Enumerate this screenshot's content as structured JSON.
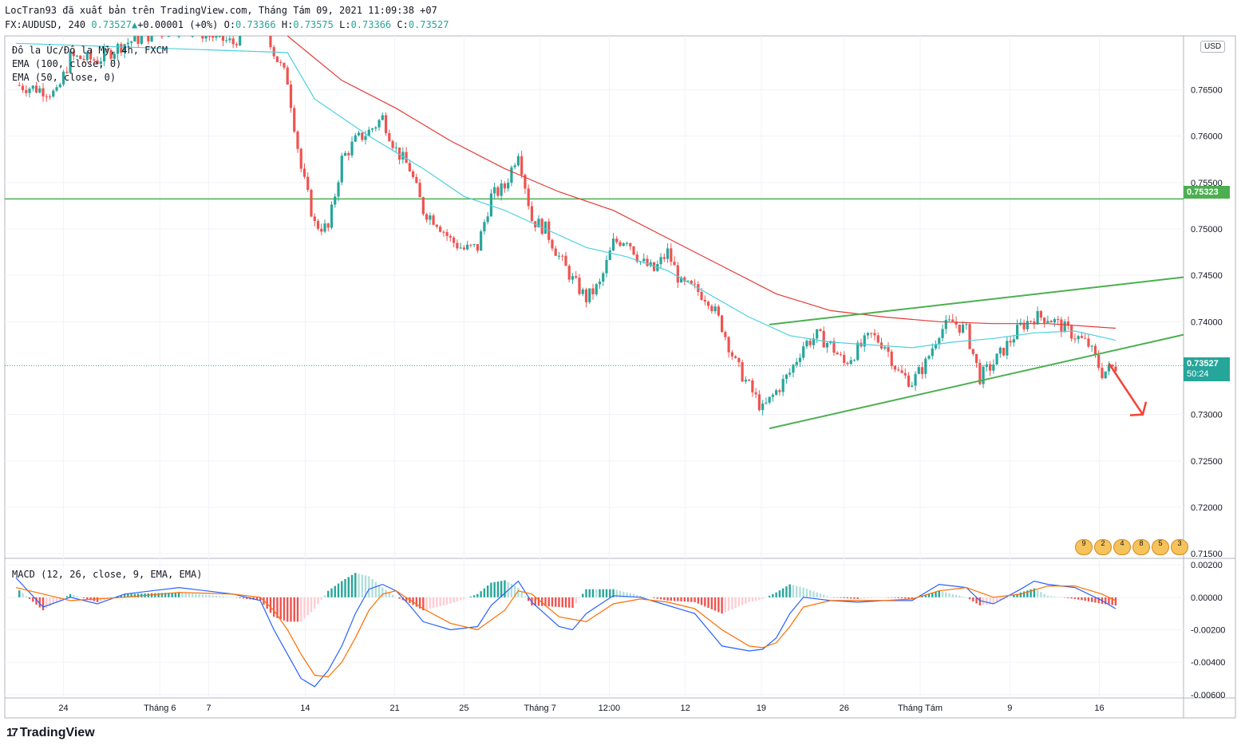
{
  "header": {
    "line1": "LocTran93 đã xuất bản trên TradingView.com, Tháng Tám 09, 2021 11:09:38 +07",
    "symbol": "FX:AUDUSD, 240",
    "last": "0.73527",
    "change": "+0.00001 (+0%)",
    "o_label": "O:",
    "o": "0.73366",
    "h_label": "H:",
    "h": "0.73575",
    "l_label": "L:",
    "l": "0.73366",
    "c_label": "C:",
    "c": "0.73527"
  },
  "legend": {
    "title": "Đô la Úc/Đô la Mỹ, 4h, FXCM",
    "ema100": "EMA (100, close, 0)",
    "ema50": "EMA (50, close, 0)",
    "macd": "MACD (12, 26, close, 9, EMA, EMA)"
  },
  "price_axis": {
    "currency": "USD",
    "ticks": [
      "0.76500",
      "0.76000",
      "0.75500",
      "0.75000",
      "0.74500",
      "0.74000",
      "0.73000",
      "0.72500",
      "0.72000",
      "0.71500"
    ],
    "hline_label": "0.75323",
    "current_label": "0.73527",
    "countdown": "50:24"
  },
  "macd_axis": {
    "ticks": [
      "0.00200",
      "0.00000",
      "-0.00200",
      "-0.00400",
      "-0.00600"
    ]
  },
  "time_axis": {
    "ticks": [
      "24",
      "Tháng 6",
      "7",
      "14",
      "21",
      "25",
      "Tháng 7",
      "12:00",
      "12",
      "19",
      "26",
      "Tháng Tám",
      "9",
      "16"
    ]
  },
  "events": [
    "9",
    "2",
    "4",
    "8",
    "5",
    "3"
  ],
  "brand": {
    "logo": "17",
    "name": "TradingView"
  },
  "colors": {
    "up": "#26a69a",
    "down": "#ef5350",
    "ema50": "#4dd0e1",
    "ema100": "#e53935",
    "trend": "#4caf50",
    "macd": "#2962ff",
    "signal": "#ff6d00",
    "arrow": "#f44336"
  },
  "chart_data": {
    "type": "candlestick",
    "symbol": "FX:AUDUSD",
    "timeframe": "4h",
    "ylim": [
      0.7145,
      0.7708
    ],
    "macd_ylim": [
      -0.0062,
      0.0024
    ],
    "horizontal_line": 0.75323,
    "current_price": 0.73527,
    "close_path": [
      [
        0,
        0.7655
      ],
      [
        2,
        0.765
      ],
      [
        3,
        0.7645
      ],
      [
        4,
        0.7685
      ],
      [
        6,
        0.7682
      ],
      [
        8,
        0.77
      ],
      [
        10,
        0.771
      ],
      [
        12,
        0.772
      ],
      [
        14,
        0.771
      ],
      [
        16,
        0.77
      ],
      [
        18,
        0.774
      ],
      [
        19,
        0.769
      ],
      [
        20,
        0.766
      ],
      [
        21,
        0.7565
      ],
      [
        22,
        0.7505
      ],
      [
        23,
        0.75
      ],
      [
        24,
        0.7575
      ],
      [
        25,
        0.7595
      ],
      [
        26,
        0.7605
      ],
      [
        27,
        0.762
      ],
      [
        28,
        0.7585
      ],
      [
        29,
        0.7565
      ],
      [
        30,
        0.752
      ],
      [
        31,
        0.7508
      ],
      [
        32,
        0.7488
      ],
      [
        33,
        0.7478
      ],
      [
        34,
        0.748
      ],
      [
        35,
        0.7535
      ],
      [
        36,
        0.7545
      ],
      [
        37,
        0.7585
      ],
      [
        38,
        0.751
      ],
      [
        39,
        0.75
      ],
      [
        40,
        0.747
      ],
      [
        41,
        0.7445
      ],
      [
        42,
        0.7425
      ],
      [
        43,
        0.744
      ],
      [
        44,
        0.7485
      ],
      [
        45,
        0.749
      ],
      [
        46,
        0.7465
      ],
      [
        47,
        0.7455
      ],
      [
        48,
        0.7475
      ],
      [
        49,
        0.744
      ],
      [
        50,
        0.7435
      ],
      [
        51,
        0.7425
      ],
      [
        52,
        0.7395
      ],
      [
        53,
        0.7355
      ],
      [
        54,
        0.733
      ],
      [
        55,
        0.7305
      ],
      [
        56,
        0.7325
      ],
      [
        57,
        0.7345
      ],
      [
        58,
        0.7375
      ],
      [
        59,
        0.7385
      ],
      [
        60,
        0.7375
      ],
      [
        61,
        0.7355
      ],
      [
        62,
        0.737
      ],
      [
        63,
        0.7385
      ],
      [
        64,
        0.7375
      ],
      [
        65,
        0.7345
      ],
      [
        66,
        0.7335
      ],
      [
        67,
        0.7355
      ],
      [
        68,
        0.739
      ],
      [
        69,
        0.74
      ],
      [
        70,
        0.739
      ],
      [
        71,
        0.734
      ],
      [
        72,
        0.7355
      ],
      [
        73,
        0.7375
      ],
      [
        74,
        0.7395
      ],
      [
        75,
        0.7405
      ],
      [
        76,
        0.7405
      ],
      [
        77,
        0.7395
      ],
      [
        78,
        0.7385
      ],
      [
        79,
        0.7375
      ],
      [
        80,
        0.7345
      ],
      [
        81,
        0.7352
      ]
    ],
    "ema50": [
      [
        0,
        0.77
      ],
      [
        20,
        0.769
      ],
      [
        22,
        0.764
      ],
      [
        26,
        0.76
      ],
      [
        30,
        0.7565
      ],
      [
        33,
        0.7535
      ],
      [
        36,
        0.752
      ],
      [
        39,
        0.75
      ],
      [
        42,
        0.748
      ],
      [
        45,
        0.747
      ],
      [
        48,
        0.7455
      ],
      [
        51,
        0.743
      ],
      [
        54,
        0.7405
      ],
      [
        57,
        0.7385
      ],
      [
        60,
        0.7378
      ],
      [
        63,
        0.7375
      ],
      [
        66,
        0.7372
      ],
      [
        69,
        0.7378
      ],
      [
        72,
        0.7382
      ],
      [
        75,
        0.7388
      ],
      [
        78,
        0.739
      ],
      [
        81,
        0.738
      ]
    ],
    "ema100": [
      [
        20,
        0.772
      ],
      [
        24,
        0.766
      ],
      [
        28,
        0.763
      ],
      [
        32,
        0.7595
      ],
      [
        36,
        0.7565
      ],
      [
        40,
        0.754
      ],
      [
        44,
        0.752
      ],
      [
        48,
        0.749
      ],
      [
        52,
        0.746
      ],
      [
        56,
        0.743
      ],
      [
        60,
        0.7412
      ],
      [
        64,
        0.7405
      ],
      [
        68,
        0.74
      ],
      [
        72,
        0.7398
      ],
      [
        76,
        0.7398
      ],
      [
        81,
        0.7393
      ]
    ],
    "trendlines": [
      {
        "name": "upper",
        "from": [
          55.5,
          0.7397
        ],
        "to": [
          86,
          0.7448
        ]
      },
      {
        "name": "lower",
        "from": [
          55.5,
          0.7285
        ],
        "to": [
          86,
          0.7386
        ]
      }
    ],
    "forecast_arrow": {
      "from": [
        80.5,
        0.7355
      ],
      "to": [
        83,
        0.73
      ]
    },
    "macd_path": [
      [
        0,
        0.0012
      ],
      [
        2,
        -0.0006
      ],
      [
        4,
        0.0
      ],
      [
        6,
        -0.0004
      ],
      [
        8,
        0.0002
      ],
      [
        10,
        0.0004
      ],
      [
        12,
        0.0006
      ],
      [
        14,
        0.0004
      ],
      [
        16,
        0.0002
      ],
      [
        18,
        -0.0002
      ],
      [
        19,
        -0.002
      ],
      [
        20,
        -0.0035
      ],
      [
        21,
        -0.005
      ],
      [
        22,
        -0.0055
      ],
      [
        23,
        -0.0045
      ],
      [
        24,
        -0.003
      ],
      [
        25,
        -0.001
      ],
      [
        26,
        0.0005
      ],
      [
        27,
        0.0008
      ],
      [
        28,
        0.0004
      ],
      [
        29,
        -0.0005
      ],
      [
        30,
        -0.0015
      ],
      [
        32,
        -0.002
      ],
      [
        34,
        -0.0018
      ],
      [
        35,
        -0.0005
      ],
      [
        37,
        0.001
      ],
      [
        38,
        -0.0003
      ],
      [
        40,
        -0.0018
      ],
      [
        41,
        -0.002
      ],
      [
        42,
        -0.001
      ],
      [
        44,
        0.0001
      ],
      [
        46,
        0.0
      ],
      [
        48,
        -0.0005
      ],
      [
        50,
        -0.001
      ],
      [
        52,
        -0.003
      ],
      [
        54,
        -0.0033
      ],
      [
        55,
        -0.0032
      ],
      [
        56,
        -0.0025
      ],
      [
        57,
        -0.001
      ],
      [
        58,
        0.0
      ],
      [
        60,
        -0.0002
      ],
      [
        62,
        -0.0003
      ],
      [
        64,
        -0.0002
      ],
      [
        66,
        -0.0002
      ],
      [
        68,
        0.0008
      ],
      [
        70,
        0.0006
      ],
      [
        71,
        -0.0002
      ],
      [
        72,
        -0.0004
      ],
      [
        74,
        0.0005
      ],
      [
        75,
        0.001
      ],
      [
        76,
        0.0008
      ],
      [
        78,
        0.0006
      ],
      [
        80,
        -0.0002
      ],
      [
        81,
        -0.0007
      ]
    ],
    "signal_path": [
      [
        0,
        0.0006
      ],
      [
        4,
        -0.0002
      ],
      [
        8,
        0.0
      ],
      [
        12,
        0.0003
      ],
      [
        16,
        0.0002
      ],
      [
        18,
        0.0
      ],
      [
        19,
        -0.0008
      ],
      [
        20,
        -0.002
      ],
      [
        21,
        -0.0035
      ],
      [
        22,
        -0.0048
      ],
      [
        23,
        -0.0049
      ],
      [
        24,
        -0.004
      ],
      [
        25,
        -0.0025
      ],
      [
        26,
        -0.0008
      ],
      [
        27,
        0.0002
      ],
      [
        28,
        0.0004
      ],
      [
        30,
        -0.0007
      ],
      [
        32,
        -0.0016
      ],
      [
        34,
        -0.002
      ],
      [
        36,
        -0.0008
      ],
      [
        37,
        0.0004
      ],
      [
        38,
        0.0002
      ],
      [
        40,
        -0.0012
      ],
      [
        42,
        -0.0015
      ],
      [
        44,
        -0.0004
      ],
      [
        46,
        -0.0001
      ],
      [
        48,
        -0.0003
      ],
      [
        50,
        -0.0007
      ],
      [
        52,
        -0.002
      ],
      [
        54,
        -0.003
      ],
      [
        55,
        -0.0031
      ],
      [
        56,
        -0.0028
      ],
      [
        57,
        -0.0018
      ],
      [
        58,
        -0.0006
      ],
      [
        60,
        -0.0002
      ],
      [
        64,
        -0.0002
      ],
      [
        66,
        -0.0001
      ],
      [
        68,
        0.0004
      ],
      [
        70,
        0.0006
      ],
      [
        72,
        0.0
      ],
      [
        74,
        0.0002
      ],
      [
        76,
        0.0007
      ],
      [
        78,
        0.0007
      ],
      [
        80,
        0.0002
      ],
      [
        81,
        -0.0002
      ]
    ]
  }
}
